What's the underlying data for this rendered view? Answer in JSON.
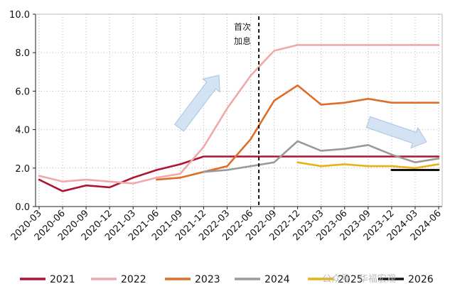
{
  "chart_data": {
    "type": "line",
    "ylim": [
      0,
      10
    ],
    "yticks": [
      "0.0",
      "2.0",
      "4.0",
      "6.0",
      "8.0",
      "10.0"
    ],
    "x": [
      "2020-03",
      "2020-06",
      "2020-09",
      "2020-12",
      "2021-03",
      "2021-06",
      "2021-09",
      "2021-12",
      "2022-03",
      "2022-06",
      "2022-09",
      "2022-12",
      "2023-03",
      "2023-06",
      "2023-09",
      "2023-12",
      "2024-03",
      "2024-06"
    ],
    "grid": "dotted",
    "legend_position": "bottom",
    "annotation": {
      "line1": "首次",
      "line2": "加息",
      "at": "2022-07"
    },
    "series": [
      {
        "name": "2021",
        "color": "#b0122f",
        "values": [
          1.4,
          0.8,
          1.1,
          1.0,
          1.5,
          1.9,
          2.2,
          2.6,
          2.6,
          2.6,
          2.6,
          2.6,
          2.6,
          2.6,
          2.6,
          2.6,
          2.6,
          2.6
        ]
      },
      {
        "name": "2022",
        "color": "#f0a8a8",
        "values": [
          1.6,
          1.3,
          1.4,
          1.3,
          1.2,
          1.5,
          1.7,
          3.1,
          5.1,
          6.8,
          8.1,
          8.4,
          8.4,
          8.4,
          8.4,
          8.4,
          8.4,
          8.4
        ]
      },
      {
        "name": "2023",
        "color": "#dd6d28",
        "values": [
          null,
          null,
          null,
          null,
          null,
          1.4,
          1.5,
          1.8,
          2.1,
          3.5,
          5.5,
          6.3,
          5.3,
          5.4,
          5.6,
          5.4,
          5.4,
          5.4
        ]
      },
      {
        "name": "2024",
        "color": "#999999",
        "values": [
          null,
          null,
          null,
          null,
          null,
          null,
          null,
          1.8,
          1.9,
          2.1,
          2.3,
          3.4,
          2.9,
          3.0,
          3.2,
          2.7,
          2.3,
          2.5
        ]
      },
      {
        "name": "2025",
        "color": "#e8b114",
        "values": [
          null,
          null,
          null,
          null,
          null,
          null,
          null,
          null,
          null,
          null,
          null,
          2.3,
          2.1,
          2.2,
          2.1,
          2.1,
          2.0,
          2.2
        ]
      },
      {
        "name": "2026",
        "color": "#111111",
        "values": [
          null,
          null,
          null,
          null,
          null,
          null,
          null,
          null,
          null,
          null,
          null,
          null,
          null,
          null,
          null,
          1.9,
          1.9,
          1.9
        ]
      }
    ]
  },
  "watermark": {
    "text": "公众号 · 华福宏观"
  }
}
